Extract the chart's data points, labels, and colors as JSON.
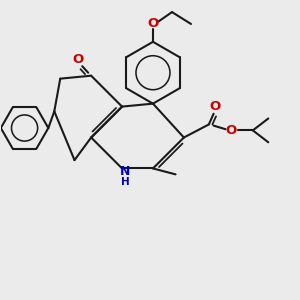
{
  "bg_color": "#ebebeb",
  "bond_color": "#1a1a1a",
  "o_color": "#cc0000",
  "n_color": "#0000cc",
  "lw": 1.5,
  "dbo": 0.055,
  "figsize": [
    3.0,
    3.0
  ],
  "dpi": 100,
  "xlim": [
    -0.5,
    4.5
  ],
  "ylim": [
    -0.3,
    4.7
  ]
}
